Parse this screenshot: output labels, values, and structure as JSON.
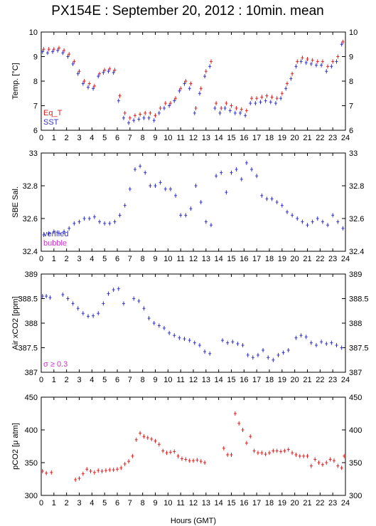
{
  "title": "PX154E : September 20, 2012 : 10min. mean",
  "xlabel": "Hours (GMT)",
  "colors": {
    "blue": "#3333cc",
    "red": "#dd2222",
    "magenta": "#cc33cc",
    "axis": "#000000"
  },
  "chart_data": [
    {
      "id": "temp",
      "type": "scatter",
      "ylabel": "Temp. [°C]",
      "xlim": [
        0,
        24
      ],
      "ylim": [
        6,
        10
      ],
      "yticks": [
        "6",
        "7",
        "8",
        "9",
        "10"
      ],
      "xticks": [
        "0",
        "1",
        "2",
        "3",
        "4",
        "5",
        "6",
        "7",
        "8",
        "9",
        "10",
        "11",
        "12",
        "13",
        "14",
        "15",
        "16",
        "17",
        "18",
        "19",
        "20",
        "21",
        "22",
        "23",
        "24"
      ],
      "legend": [
        {
          "label": "Eq_T",
          "color": "#dd2222"
        },
        {
          "label": "SST",
          "color": "#3333cc"
        }
      ],
      "series": [
        {
          "name": "Eq_T",
          "color": "#dd2222",
          "x": [
            0.2,
            0.6,
            1.0,
            1.4,
            1.8,
            2.2,
            2.6,
            3.0,
            3.4,
            3.8,
            4.2,
            4.6,
            5.0,
            5.4,
            5.8,
            6.2,
            6.6,
            7.0,
            7.4,
            7.8,
            8.2,
            8.6,
            9.0,
            9.4,
            9.8,
            10.2,
            10.6,
            11.0,
            11.4,
            11.8,
            12.2,
            12.6,
            13.0,
            13.4,
            13.8,
            14.2,
            14.6,
            15.0,
            15.4,
            15.8,
            16.2,
            16.6,
            17.0,
            17.4,
            17.8,
            18.2,
            18.6,
            19.0,
            19.4,
            19.8,
            20.2,
            20.6,
            21.0,
            21.4,
            21.8,
            22.2,
            22.6,
            23.0,
            23.4,
            23.8
          ],
          "y": [
            9.3,
            9.3,
            9.3,
            9.35,
            9.25,
            9.1,
            8.8,
            8.4,
            8.0,
            7.9,
            7.8,
            8.3,
            8.45,
            8.5,
            8.45,
            7.4,
            6.7,
            6.5,
            6.6,
            6.65,
            6.7,
            6.7,
            6.6,
            6.9,
            7.1,
            7.1,
            7.3,
            7.7,
            8.0,
            7.9,
            6.9,
            7.7,
            8.4,
            8.8,
            7.1,
            6.9,
            7.1,
            7.0,
            6.9,
            6.85,
            6.8,
            7.3,
            7.3,
            7.35,
            7.4,
            7.35,
            7.3,
            7.5,
            7.9,
            8.3,
            8.8,
            8.95,
            8.9,
            8.85,
            8.8,
            8.8,
            8.6,
            8.8,
            9.0,
            9.6
          ]
        },
        {
          "name": "SST",
          "color": "#3333cc",
          "x": [
            0.1,
            0.5,
            0.9,
            1.3,
            1.7,
            2.1,
            2.5,
            2.9,
            3.3,
            3.7,
            4.1,
            4.5,
            4.9,
            5.3,
            5.7,
            6.1,
            6.5,
            6.9,
            7.3,
            7.7,
            8.1,
            8.5,
            8.9,
            9.3,
            9.7,
            10.1,
            10.5,
            10.9,
            11.3,
            11.7,
            12.1,
            12.5,
            12.9,
            13.3,
            13.7,
            14.1,
            14.5,
            14.9,
            15.3,
            15.7,
            16.1,
            16.5,
            16.9,
            17.3,
            17.7,
            18.1,
            18.5,
            18.9,
            19.3,
            19.7,
            20.1,
            20.5,
            20.9,
            21.3,
            21.7,
            22.1,
            22.5,
            22.9,
            23.3,
            23.7
          ],
          "y": [
            9.2,
            9.15,
            9.2,
            9.25,
            9.15,
            9.0,
            8.7,
            8.3,
            7.9,
            7.75,
            7.7,
            8.2,
            8.35,
            8.4,
            8.35,
            7.2,
            6.5,
            6.3,
            6.4,
            6.45,
            6.5,
            6.5,
            6.4,
            6.7,
            6.9,
            7.0,
            7.2,
            7.6,
            7.9,
            7.7,
            6.7,
            7.5,
            8.2,
            8.6,
            6.9,
            6.7,
            6.9,
            6.8,
            6.7,
            6.7,
            6.6,
            7.1,
            7.1,
            7.15,
            7.2,
            7.15,
            7.1,
            7.3,
            7.7,
            8.1,
            8.6,
            8.8,
            8.75,
            8.7,
            8.65,
            8.65,
            8.4,
            8.6,
            8.8,
            9.5
          ]
        }
      ]
    },
    {
      "id": "sal",
      "type": "scatter",
      "ylabel": "SBE Sal.",
      "xlim": [
        0,
        24
      ],
      "ylim": [
        32.4,
        33
      ],
      "yticks": [
        "32.4",
        "32.6",
        "32.8",
        "33"
      ],
      "xticks": [
        "0",
        "1",
        "2",
        "3",
        "4",
        "5",
        "6",
        "7",
        "8",
        "9",
        "10",
        "11",
        "12",
        "13",
        "14",
        "15",
        "16",
        "17",
        "18",
        "19",
        "20",
        "21",
        "22",
        "23",
        "24"
      ],
      "legend": [
        {
          "label": "verified",
          "color": "#3333cc"
        },
        {
          "label": "bubble",
          "color": "#cc33cc"
        }
      ],
      "series": [
        {
          "name": "verified",
          "color": "#3333cc",
          "x": [
            0.2,
            0.6,
            1.0,
            1.4,
            1.8,
            2.2,
            2.6,
            3.0,
            3.4,
            3.8,
            4.2,
            4.6,
            5.0,
            5.4,
            5.8,
            6.2,
            6.6,
            7.0,
            7.4,
            7.8,
            8.2,
            8.6,
            9.0,
            9.4,
            9.8,
            10.2,
            10.6,
            11.0,
            11.4,
            11.8,
            12.2,
            12.6,
            13.0,
            13.4,
            13.8,
            14.2,
            14.6,
            15.0,
            15.4,
            15.8,
            16.2,
            16.6,
            17.0,
            17.4,
            17.8,
            18.2,
            18.6,
            19.0,
            19.4,
            19.8,
            20.2,
            20.6,
            21.0,
            21.4,
            21.8,
            22.2,
            22.6,
            23.0,
            23.4,
            23.8
          ],
          "y": [
            32.5,
            32.51,
            32.52,
            32.51,
            32.52,
            32.54,
            32.57,
            32.58,
            32.6,
            32.6,
            32.61,
            32.58,
            32.57,
            32.57,
            32.58,
            32.62,
            32.68,
            32.78,
            32.9,
            32.92,
            32.88,
            32.8,
            32.8,
            32.82,
            32.78,
            32.78,
            32.74,
            32.62,
            32.62,
            32.66,
            32.8,
            32.7,
            32.58,
            32.56,
            32.86,
            32.88,
            32.76,
            32.88,
            32.9,
            32.84,
            32.94,
            32.9,
            32.86,
            32.74,
            32.72,
            32.72,
            32.7,
            32.68,
            32.64,
            32.62,
            32.6,
            32.58,
            32.56,
            32.58,
            32.6,
            32.58,
            32.56,
            32.62,
            32.58,
            32.54
          ]
        }
      ]
    },
    {
      "id": "air",
      "type": "scatter",
      "ylabel": "Air xCO2 [ppm]",
      "xlim": [
        0,
        24
      ],
      "ylim": [
        387,
        389
      ],
      "yticks": [
        "387",
        "387.5",
        "388",
        "388.5",
        "389"
      ],
      "xticks": [
        "0",
        "1",
        "2",
        "3",
        "4",
        "5",
        "6",
        "7",
        "8",
        "9",
        "10",
        "11",
        "12",
        "13",
        "14",
        "15",
        "16",
        "17",
        "18",
        "19",
        "20",
        "21",
        "22",
        "23",
        "24"
      ],
      "legend": [
        {
          "label": "σ ≥ 0.3",
          "color": "#cc33cc"
        }
      ],
      "series": [
        {
          "name": "",
          "color": "#3333cc",
          "x": [
            0.1,
            0.4,
            0.7,
            1.7,
            2.1,
            2.5,
            2.9,
            3.3,
            3.7,
            4.1,
            4.5,
            4.9,
            5.3,
            5.7,
            6.1,
            6.5,
            7.3,
            7.7,
            8.1,
            8.5,
            8.9,
            9.3,
            9.7,
            10.1,
            10.5,
            10.9,
            11.3,
            11.7,
            12.1,
            12.5,
            12.9,
            13.3,
            14.3,
            14.7,
            15.1,
            15.5,
            15.9,
            16.3,
            16.7,
            17.1,
            17.5,
            17.9,
            18.3,
            18.7,
            19.1,
            19.5,
            20.1,
            20.5,
            20.9,
            21.3,
            21.7,
            22.1,
            22.5,
            22.9,
            23.3,
            23.7
          ],
          "y": [
            388.55,
            388.55,
            388.52,
            388.58,
            388.5,
            388.4,
            388.3,
            388.2,
            388.14,
            388.15,
            388.2,
            388.4,
            388.6,
            388.68,
            388.7,
            388.4,
            388.5,
            388.45,
            388.3,
            388.1,
            388.0,
            387.95,
            387.9,
            387.8,
            387.75,
            387.7,
            387.68,
            387.65,
            387.6,
            387.55,
            387.42,
            387.38,
            387.65,
            387.6,
            387.62,
            387.58,
            387.55,
            387.35,
            387.3,
            387.35,
            387.45,
            387.3,
            387.25,
            387.35,
            387.4,
            387.45,
            387.7,
            387.75,
            387.72,
            387.6,
            387.55,
            387.62,
            387.58,
            387.6,
            387.55,
            387.5
          ]
        }
      ]
    },
    {
      "id": "pco2",
      "type": "scatter",
      "ylabel": "pCO2 [μ atm]",
      "xlim": [
        0,
        24
      ],
      "ylim": [
        300,
        450
      ],
      "yticks": [
        "300",
        "350",
        "400",
        "450"
      ],
      "xticks": [
        "0",
        "1",
        "2",
        "3",
        "4",
        "5",
        "6",
        "7",
        "8",
        "9",
        "10",
        "11",
        "12",
        "13",
        "14",
        "15",
        "16",
        "17",
        "18",
        "19",
        "20",
        "21",
        "22",
        "23",
        "24"
      ],
      "legend": [],
      "series": [
        {
          "name": "",
          "color": "#dd2222",
          "x": [
            0.1,
            0.4,
            0.8,
            2.7,
            3.0,
            3.3,
            3.6,
            3.9,
            4.2,
            4.5,
            4.8,
            5.1,
            5.4,
            5.7,
            6.0,
            6.3,
            6.6,
            6.9,
            7.2,
            7.5,
            7.8,
            8.1,
            8.4,
            8.7,
            9.0,
            9.3,
            9.6,
            9.9,
            10.2,
            10.5,
            10.8,
            11.1,
            11.4,
            11.7,
            12.0,
            12.3,
            12.6,
            12.9,
            14.4,
            14.7,
            15.0,
            15.3,
            15.6,
            15.9,
            16.2,
            16.5,
            16.8,
            17.1,
            17.4,
            17.7,
            18.0,
            18.3,
            18.6,
            18.9,
            19.2,
            19.5,
            19.8,
            20.1,
            20.4,
            20.7,
            21.0,
            21.3,
            21.6,
            21.9,
            22.2,
            22.5,
            22.8,
            23.1,
            23.4,
            23.7,
            23.9
          ],
          "y": [
            337,
            334,
            335,
            324,
            326,
            333,
            340,
            337,
            335,
            338,
            337,
            338,
            339,
            339,
            340,
            342,
            348,
            352,
            360,
            385,
            395,
            390,
            388,
            386,
            383,
            378,
            368,
            365,
            366,
            367,
            360,
            356,
            355,
            353,
            353,
            354,
            352,
            350,
            372,
            362,
            362,
            425,
            410,
            400,
            380,
            390,
            368,
            365,
            365,
            363,
            365,
            368,
            368,
            367,
            368,
            370,
            365,
            362,
            360,
            360,
            360,
            345,
            355,
            350,
            347,
            350,
            355,
            353,
            345,
            342,
            360
          ]
        }
      ]
    }
  ]
}
